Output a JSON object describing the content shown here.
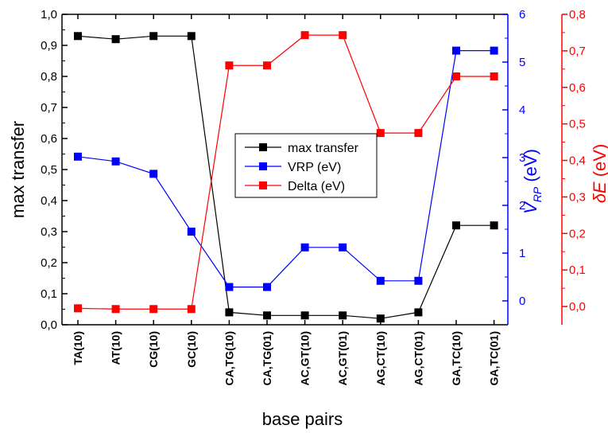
{
  "chart_data": {
    "type": "line",
    "categories": [
      "TA(10)",
      "AT(10)",
      "CG(10)",
      "GC(10)",
      "CA,TG(10)",
      "CA,TG(01)",
      "AC,GT(10)",
      "AC,GT(01)",
      "AG,CT(10)",
      "AG,CT(01)",
      "GA,TC(10)",
      "GA,TC(01)"
    ],
    "xlabel": "base pairs",
    "axes": {
      "left": {
        "label": "max transfer",
        "ylim": [
          0,
          1.0
        ],
        "ticks": [
          "0,0",
          "0,1",
          "0,2",
          "0,3",
          "0,4",
          "0,5",
          "0,6",
          "0,7",
          "0,8",
          "0,9",
          "1,0"
        ],
        "color": "#000000"
      },
      "right1": {
        "label_main": "V",
        "label_sub": "RP",
        "label_unit": " (eV)",
        "ylim": [
          -0.5,
          6.0
        ],
        "ticks": [
          "0",
          "1",
          "2",
          "3",
          "4",
          "5",
          "6"
        ],
        "color": "#0000ff"
      },
      "right2": {
        "label_main": "δE",
        "label_unit": " (eV)",
        "ylim": [
          -0.05,
          0.8
        ],
        "ticks": [
          "0,0",
          "0,1",
          "0,2",
          "0,3",
          "0,4",
          "0,5",
          "0,6",
          "0,7",
          "0,8"
        ],
        "color": "#ff0000"
      }
    },
    "series": [
      {
        "name": "max transfer",
        "axis": "left",
        "color": "#000000",
        "values": [
          0.93,
          0.92,
          0.93,
          0.93,
          0.04,
          0.03,
          0.03,
          0.03,
          0.02,
          0.04,
          0.32,
          0.32
        ]
      },
      {
        "name": "VRP (eV)",
        "axis": "right1",
        "color": "#0000ff",
        "values": [
          3.02,
          2.92,
          2.66,
          1.45,
          0.29,
          0.29,
          1.12,
          1.12,
          0.42,
          0.42,
          5.24,
          5.24
        ]
      },
      {
        "name": "Delta (eV)",
        "axis": "right2",
        "color": "#ff0000",
        "values": [
          -0.005,
          -0.007,
          -0.007,
          -0.007,
          0.66,
          0.66,
          0.743,
          0.743,
          0.475,
          0.475,
          0.63,
          0.63
        ]
      }
    ],
    "legend": {
      "position": "center",
      "entries": [
        "max transfer",
        "VRP (eV)",
        "Delta (eV)"
      ]
    },
    "grid": false
  }
}
